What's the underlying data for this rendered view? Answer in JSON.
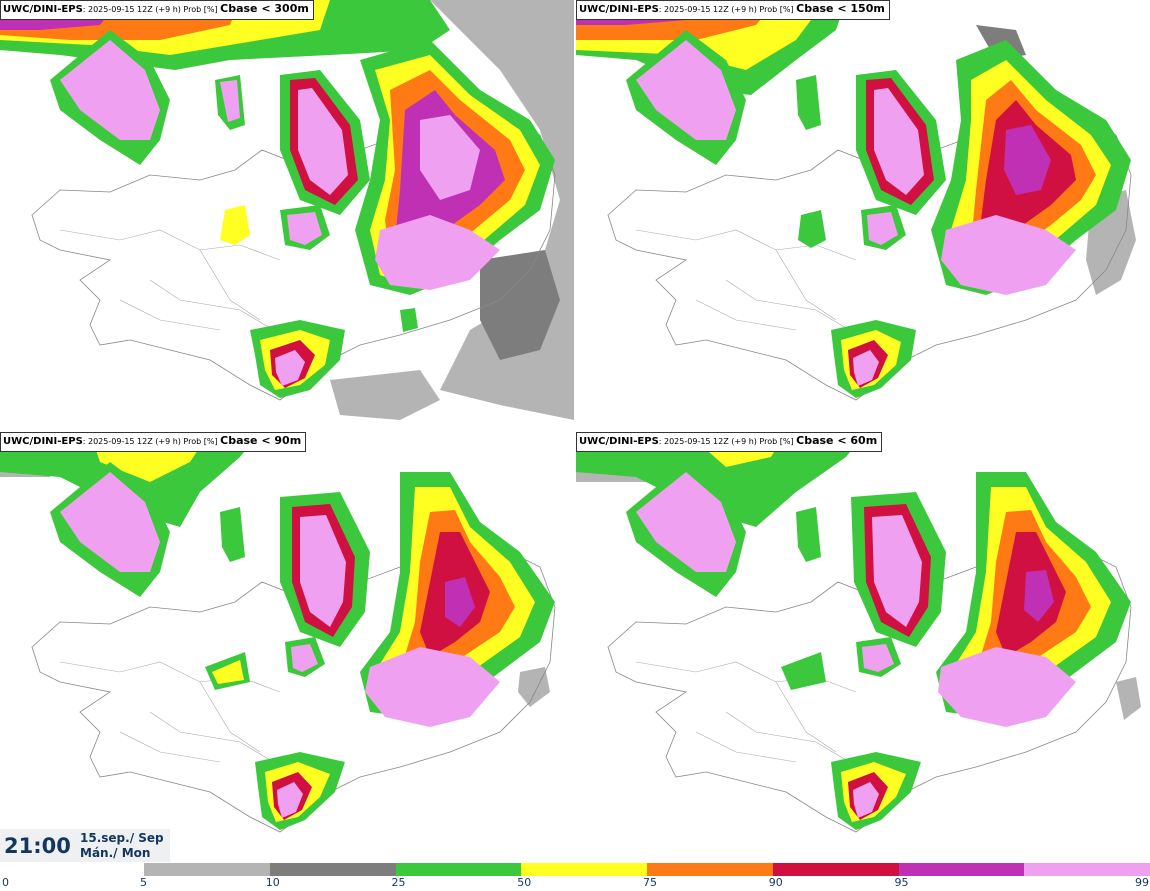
{
  "panels": [
    {
      "model": "UWC/DINI-EPS",
      "info": ": 2025-09-15 12Z (+9 h) Prob [%]",
      "param": "Cbase < 300m"
    },
    {
      "model": "UWC/DINI-EPS",
      "info": ": 2025-09-15 12Z (+9 h) Prob [%]",
      "param": "Cbase < 150m"
    },
    {
      "model": "UWC/DINI-EPS",
      "info": ": 2025-09-15 12Z (+9 h) Prob [%]",
      "param": "Cbase < 90m"
    },
    {
      "model": "UWC/DINI-EPS",
      "info": ": 2025-09-15 12Z (+9 h) Prob [%]",
      "param": "Cbase < 60m"
    }
  ],
  "valid_time": {
    "time": "21:00",
    "date_line1": "15.sep./ Sep",
    "date_line2": "Mán./ Mon"
  },
  "colorbar": {
    "ticks": [
      "0",
      "5",
      "10",
      "25",
      "50",
      "75",
      "90",
      "95",
      "99"
    ],
    "colors": [
      "#b4b4b4",
      "#7d7d7d",
      "#3cc83c",
      "#ffff22",
      "#ff7a14",
      "#d01040",
      "#c030b4",
      "#f0a0f0"
    ]
  }
}
